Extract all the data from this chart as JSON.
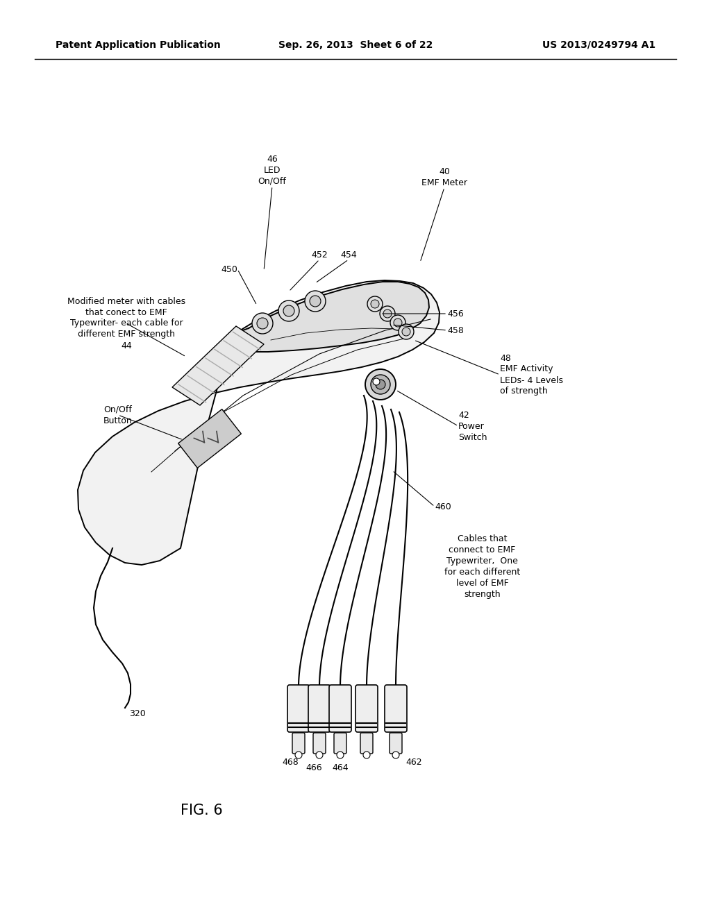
{
  "bg_color": "#ffffff",
  "header_left": "Patent Application Publication",
  "header_center": "Sep. 26, 2013  Sheet 6 of 22",
  "header_right": "US 2013/0249794 A1",
  "fig_label": "FIG. 6",
  "line_color": "#000000",
  "fill_light": "#f2f2f2",
  "fill_mid": "#e0e0e0",
  "fill_dark": "#cccccc",
  "lw_body": 1.4,
  "lw_detail": 1.0,
  "lw_cable": 1.5,
  "annotation_fontsize": 9.0,
  "header_fontsize": 10.0,
  "fig_label_fontsize": 15.0
}
